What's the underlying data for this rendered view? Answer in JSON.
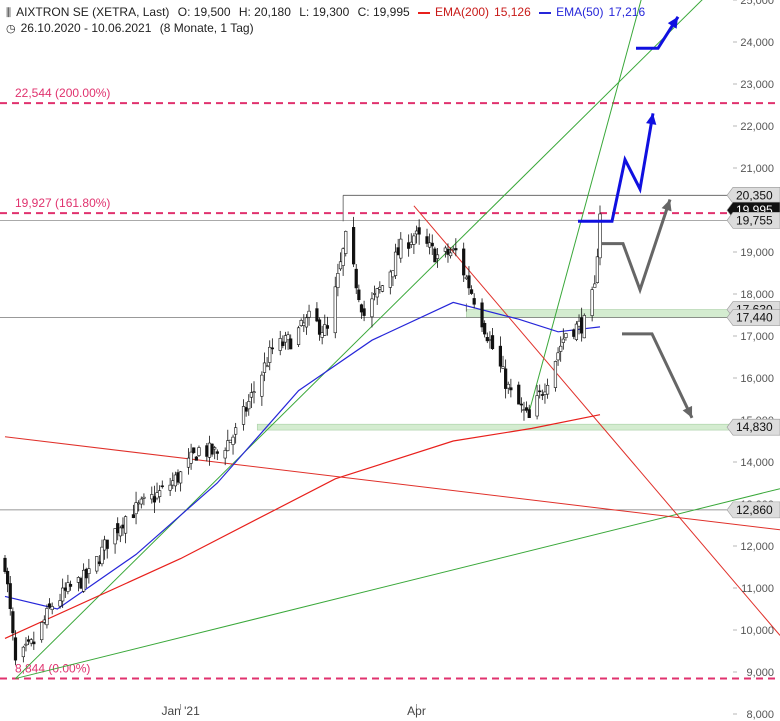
{
  "header": {
    "icon": "candlestick-icon",
    "title": "AIXTRON SE (XETRA, Last)",
    "open": "O: 19,500",
    "high": "H: 20,180",
    "low": "L: 19,300",
    "close": "C: 19,995",
    "ema200_label": "EMA(200)",
    "ema200_value": "15,126",
    "ema50_label": "EMA(50)",
    "ema50_value": "17,216",
    "clock_icon": "clock-icon",
    "range": "26.10.2020 - 10.06.2021",
    "period": "(8 Monate, 1 Tag)"
  },
  "colors": {
    "ema200": "#e8201c",
    "ema50": "#2626d9",
    "fib": "#e0326e",
    "trend_green": "#3aa83a",
    "trend_red": "#e0302a",
    "arrow_blue": "#1010e0",
    "arrow_gray": "#666666",
    "zone": "#d4ecd0"
  },
  "chart_data": {
    "type": "candlestick",
    "ylim": [
      8000,
      25000
    ],
    "ytick_labels": [
      "8,000",
      "9,000",
      "10,000",
      "11,000",
      "12,000",
      "13,000",
      "14,000",
      "15,000",
      "16,000",
      "17,000",
      "18,000",
      "19,000",
      "20,000",
      "21,000",
      "22,000",
      "23,000",
      "24,000",
      "25,000"
    ],
    "xtick_labels": [
      "Jan '21",
      "Apr"
    ],
    "price_markers": [
      {
        "label": "20,350",
        "value": 20350
      },
      {
        "label": "19,995",
        "value": 19995
      },
      {
        "label": "19,755",
        "value": 19755
      },
      {
        "label": "17,630",
        "value": 17630
      },
      {
        "label": "17,440",
        "value": 17440
      },
      {
        "label": "14,830",
        "value": 14830
      },
      {
        "label": "12,860",
        "value": 12860
      }
    ],
    "fib_levels": [
      {
        "label": "22,544 (200.00%)",
        "value": 22544
      },
      {
        "label": "19,927 (161.80%)",
        "value": 19927
      },
      {
        "label": "8,844 (0.00%)",
        "value": 8844
      }
    ],
    "support_zones": [
      {
        "low": 17440,
        "high": 17630
      },
      {
        "low": 14760,
        "high": 14900
      }
    ],
    "anchors": [
      {
        "date": "26.10.2020",
        "value": 11600
      },
      {
        "date": "30.10.2020",
        "value": 9200
      },
      {
        "date": "06.11.2020",
        "value": 9700
      },
      {
        "date": "13.11.2020",
        "value": 10600
      },
      {
        "date": "20.11.2020",
        "value": 11000
      },
      {
        "date": "27.11.2020",
        "value": 11300
      },
      {
        "date": "04.12.2020",
        "value": 12100
      },
      {
        "date": "11.12.2020",
        "value": 12700
      },
      {
        "date": "18.12.2020",
        "value": 13000
      },
      {
        "date": "25.12.2020",
        "value": 13300
      },
      {
        "date": "01.01.2021",
        "value": 13700
      },
      {
        "date": "08.01.2021",
        "value": 14300
      },
      {
        "date": "15.01.2021",
        "value": 14200
      },
      {
        "date": "22.01.2021",
        "value": 14700
      },
      {
        "date": "29.01.2021",
        "value": 15700
      },
      {
        "date": "05.02.2021",
        "value": 16700
      },
      {
        "date": "12.02.2021",
        "value": 16900
      },
      {
        "date": "19.02.2021",
        "value": 17400
      },
      {
        "date": "26.02.2021",
        "value": 17100
      },
      {
        "date": "05.03.2021",
        "value": 19300
      },
      {
        "date": "12.03.2021",
        "value": 17500
      },
      {
        "date": "19.03.2021",
        "value": 18200
      },
      {
        "date": "26.03.2021",
        "value": 19100
      },
      {
        "date": "31.03.2021",
        "value": 19400
      },
      {
        "date": "09.04.2021",
        "value": 18900
      },
      {
        "date": "16.04.2021",
        "value": 19000
      },
      {
        "date": "23.04.2021",
        "value": 17900
      },
      {
        "date": "30.04.2021",
        "value": 16700
      },
      {
        "date": "07.05.2021",
        "value": 15600
      },
      {
        "date": "14.05.2021",
        "value": 15000
      },
      {
        "date": "21.05.2021",
        "value": 16000
      },
      {
        "date": "28.05.2021",
        "value": 17100
      },
      {
        "date": "04.06.2021",
        "value": 17300
      },
      {
        "date": "08.06.2021",
        "value": 18100
      },
      {
        "date": "10.06.2021",
        "value": 19995
      }
    ],
    "ema200": [
      {
        "date": "26.10.2020",
        "value": 9800
      },
      {
        "date": "01.01.2021",
        "value": 11700
      },
      {
        "date": "01.03.2021",
        "value": 13600
      },
      {
        "date": "15.04.2021",
        "value": 14500
      },
      {
        "date": "15.05.2021",
        "value": 14800
      },
      {
        "date": "10.06.2021",
        "value": 15126
      }
    ],
    "ema50": [
      {
        "date": "26.10.2020",
        "value": 10800
      },
      {
        "date": "15.11.2020",
        "value": 10500
      },
      {
        "date": "15.12.2020",
        "value": 11800
      },
      {
        "date": "15.01.2021",
        "value": 13500
      },
      {
        "date": "15.02.2021",
        "value": 15700
      },
      {
        "date": "15.03.2021",
        "value": 16900
      },
      {
        "date": "15.04.2021",
        "value": 17800
      },
      {
        "date": "10.05.2021",
        "value": 17400
      },
      {
        "date": "25.05.2021",
        "value": 17100
      },
      {
        "date": "10.06.2021",
        "value": 17216
      }
    ],
    "trendlines": [
      {
        "color_key": "trend_green",
        "from": {
          "date": "30.10.2020",
          "value": 8844
        },
        "to": {
          "date": "10.06.2021",
          "value": 12300
        }
      },
      {
        "color_key": "trend_green",
        "from": {
          "date": "30.10.2020",
          "value": 8844
        },
        "to": {
          "date": "10.06.2021",
          "value": 22600
        }
      },
      {
        "color_key": "trend_green",
        "from": {
          "date": "14.05.2021",
          "value": 15200
        },
        "to": {
          "date": "10.06.2021",
          "value": 21400
        }
      },
      {
        "color_key": "trend_red",
        "from": {
          "date": "26.10.2020",
          "value": 14600
        },
        "to": {
          "date": "10.06.2021",
          "value": 12900
        }
      },
      {
        "color_key": "trend_red",
        "from": {
          "date": "31.03.2021",
          "value": 20100
        },
        "to": {
          "date": "10.06.2021",
          "value": 14900
        }
      }
    ],
    "resistance_line": {
      "from_date": "04.03.2021",
      "to_date": "10.06.2021",
      "value": 20350
    },
    "breakout_box": {
      "from_date": "20.04.2021",
      "to_date": "10.06.2021",
      "value": 17630
    }
  }
}
